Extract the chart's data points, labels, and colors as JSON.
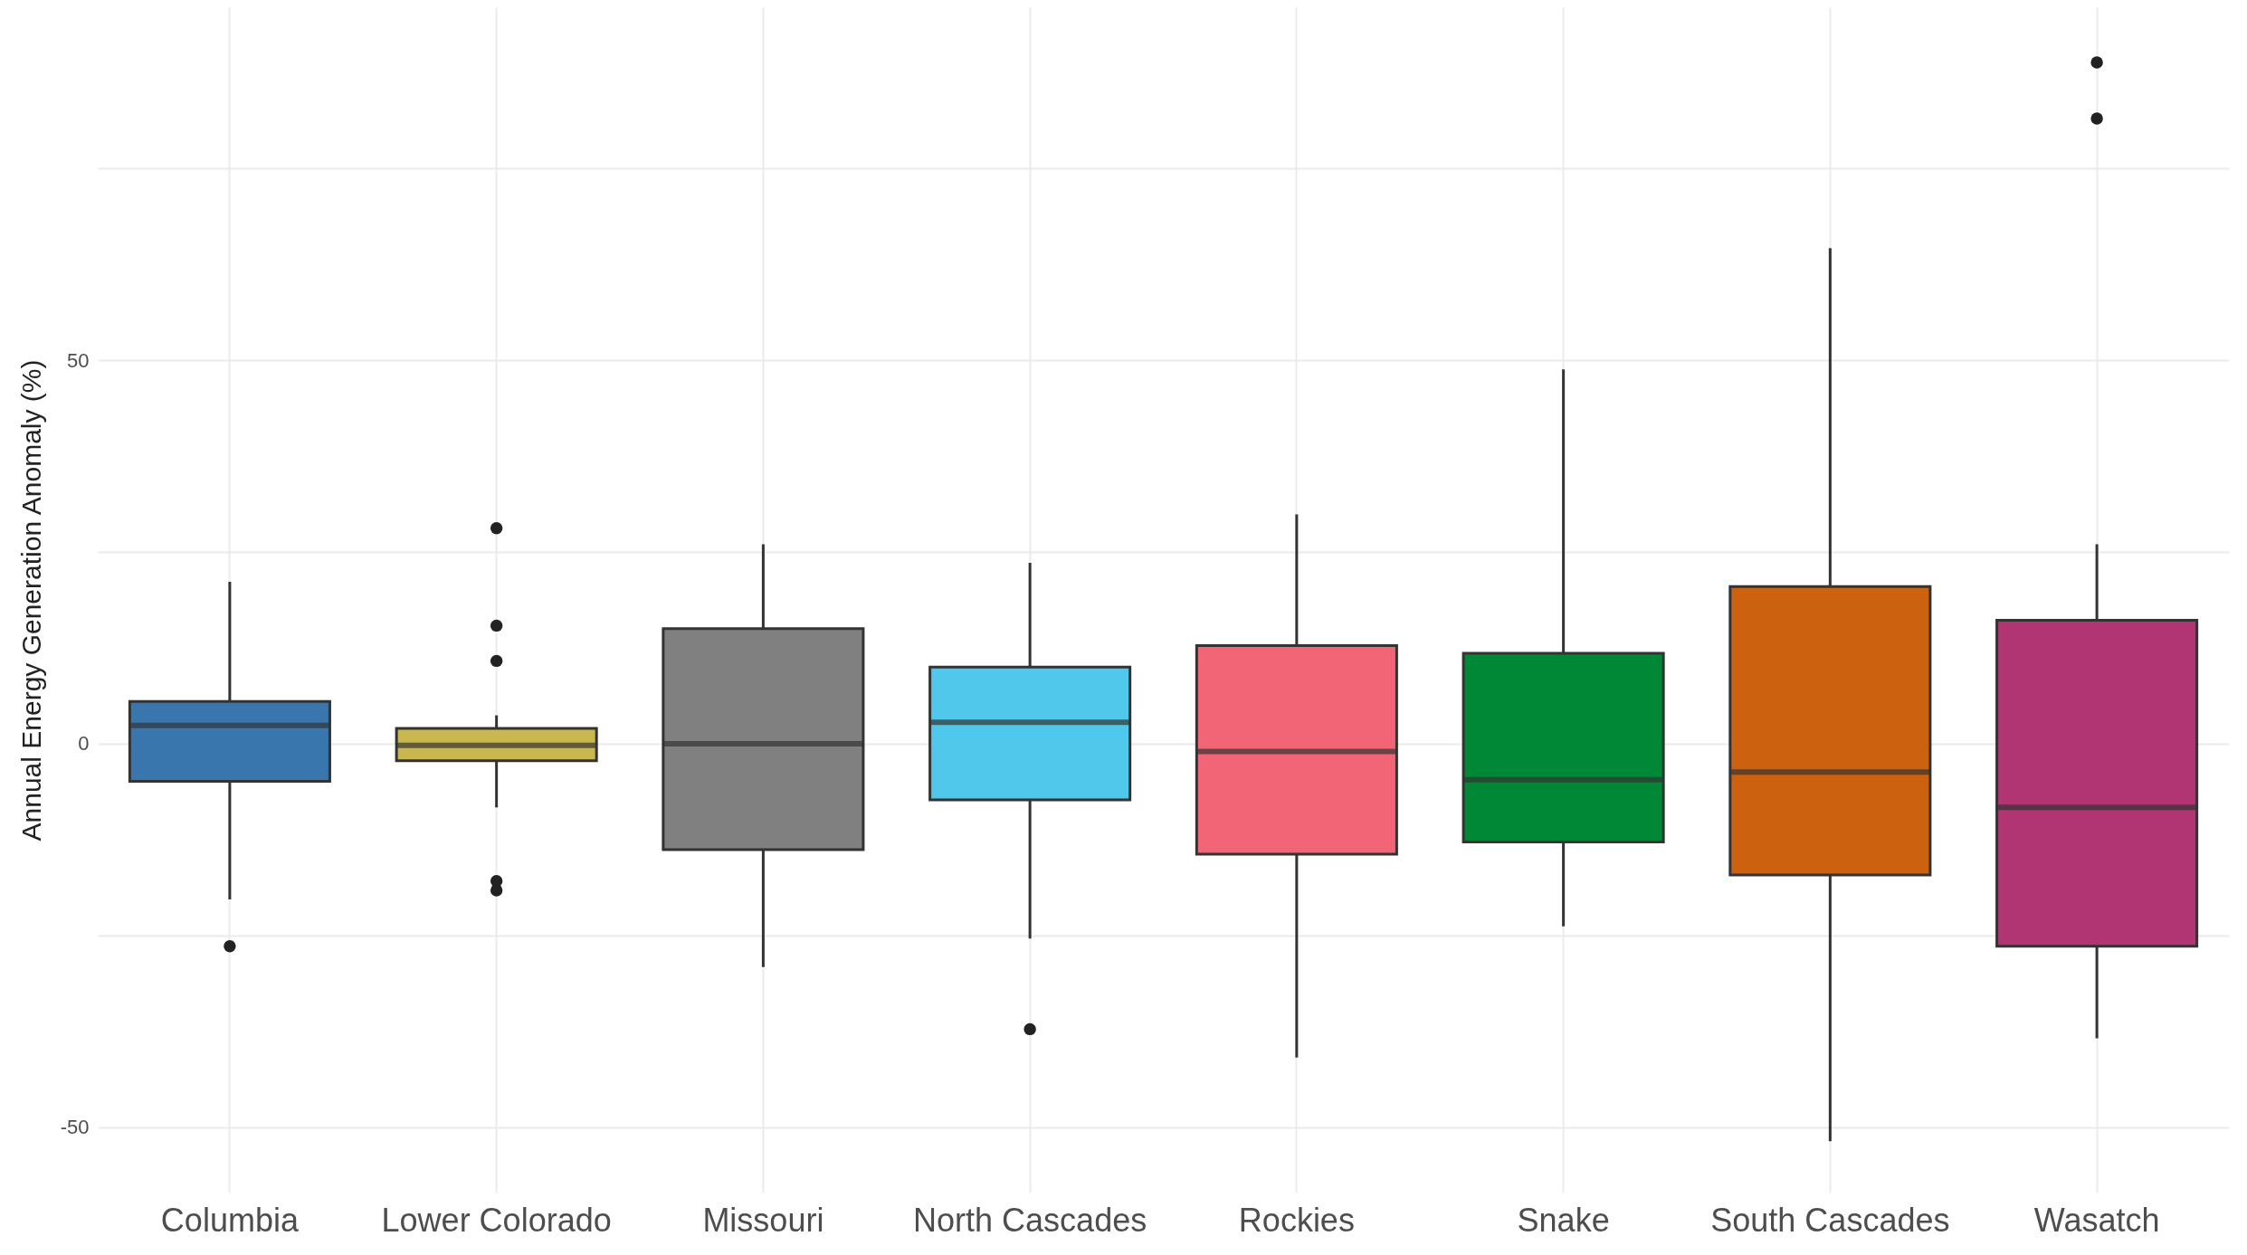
{
  "chart_data": {
    "type": "box",
    "ylabel": "Annual Energy Generation Anomaly (%)",
    "categories": [
      "Columbia",
      "Lower Colorado",
      "Missouri",
      "North Cascades",
      "Rockies",
      "Snake",
      "South Cascades",
      "Wasatch"
    ],
    "colors": [
      "#3a76ae",
      "#c9b84f",
      "#808080",
      "#4fc8ec",
      "#f26577",
      "#008837",
      "#cc620f",
      "#b03572"
    ],
    "boxes": [
      {
        "low": -20.3,
        "q1": -4.9,
        "median": 2.4,
        "q3": 5.5,
        "high": 21.1,
        "outliers": [
          -26.4
        ]
      },
      {
        "low": -8.3,
        "q1": -2.2,
        "median": -0.2,
        "q3": 2.0,
        "high": 3.7,
        "outliers": [
          28.1,
          15.4,
          10.8,
          -17.9,
          -19.1
        ]
      },
      {
        "low": -29.1,
        "q1": -13.8,
        "median": 0,
        "q3": 15,
        "high": 26
      },
      {
        "low": -25.4,
        "q1": -7.3,
        "median": 2.8,
        "q3": 10,
        "high": 23.6,
        "outliers": [
          -37.2
        ]
      },
      {
        "low": -40.9,
        "q1": -14.4,
        "median": -1,
        "q3": 12.8,
        "high": 29.9
      },
      {
        "low": -23.8,
        "q1": -12.8,
        "median": -4.7,
        "q3": 11.8,
        "high": 48.8
      },
      {
        "low": -51.8,
        "q1": -17.1,
        "median": -3.7,
        "q3": 20.5,
        "high": 64.6
      },
      {
        "low": -38.4,
        "q1": -26.4,
        "median": -8.3,
        "q3": 16.1,
        "high": 26,
        "outliers": [
          81.5,
          88.8
        ]
      }
    ],
    "ylim": [
      -58.5,
      96
    ],
    "yticks": [
      -50,
      {
        "value": -25,
        "label": null
      },
      0,
      {
        "value": 25,
        "label": null
      },
      50,
      {
        "value": 75,
        "label": null
      }
    ],
    "grid": true
  }
}
